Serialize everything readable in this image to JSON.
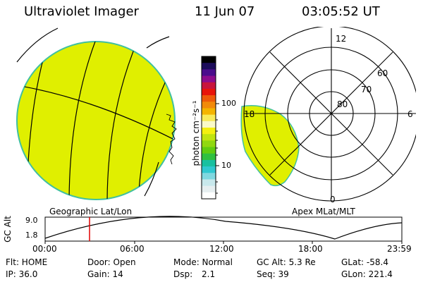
{
  "header": {
    "title": "Ultraviolet Imager",
    "date": "11 Jun 07",
    "time": "03:05:52 UT"
  },
  "colors": {
    "image_fill": "#e0ef00",
    "image_rim": "#40c0a0",
    "trace": "#000000",
    "marker": "#e00000"
  },
  "colorbar": {
    "unit_label": "photon cm⁻²s⁻¹",
    "tick_high": "100",
    "tick_low": "10",
    "colors_top_to_bottom": [
      "#000000",
      "#1c0c5a",
      "#4a0c8c",
      "#8c0c8c",
      "#c8143c",
      "#e8140a",
      "#ee5a0a",
      "#f28a0a",
      "#f4b400",
      "#f8ea5a",
      "#fafac8",
      "#f4f010",
      "#c0e410",
      "#90d810",
      "#60cc10",
      "#30c040",
      "#18c0a0",
      "#30c8d0",
      "#80d8e0",
      "#c8e8ec",
      "#e6eef0",
      "#ffffff"
    ]
  },
  "polar": {
    "labels": {
      "top": "12",
      "left": "18",
      "right": "6",
      "bottom": "0"
    },
    "rings": [
      "80",
      "70",
      "60"
    ]
  },
  "left_panel_label": "Geographic Lat/Lon",
  "right_panel_label": "Apex MLat/MLT",
  "altitude_plot": {
    "ylabel": "GC Alt",
    "y_ticks": [
      "9.0",
      "1.8"
    ],
    "x_ticks": [
      "00:00",
      "06:00",
      "12:00",
      "18:00",
      "23:59"
    ],
    "marker_time": "03:05:52"
  },
  "status": {
    "flt": "Flt: HOME",
    "ip": "IP: 36.0",
    "door": "Door: Open",
    "gain": "Gain: 14",
    "mode": "Mode: Normal",
    "dsp_label": "Dsp:",
    "dsp_value": "2.1",
    "gcalt": "GC Alt: 5.3 Re",
    "seq": "Seq: 39",
    "glat": "GLat: -58.4",
    "glon": "GLon: 221.4"
  }
}
